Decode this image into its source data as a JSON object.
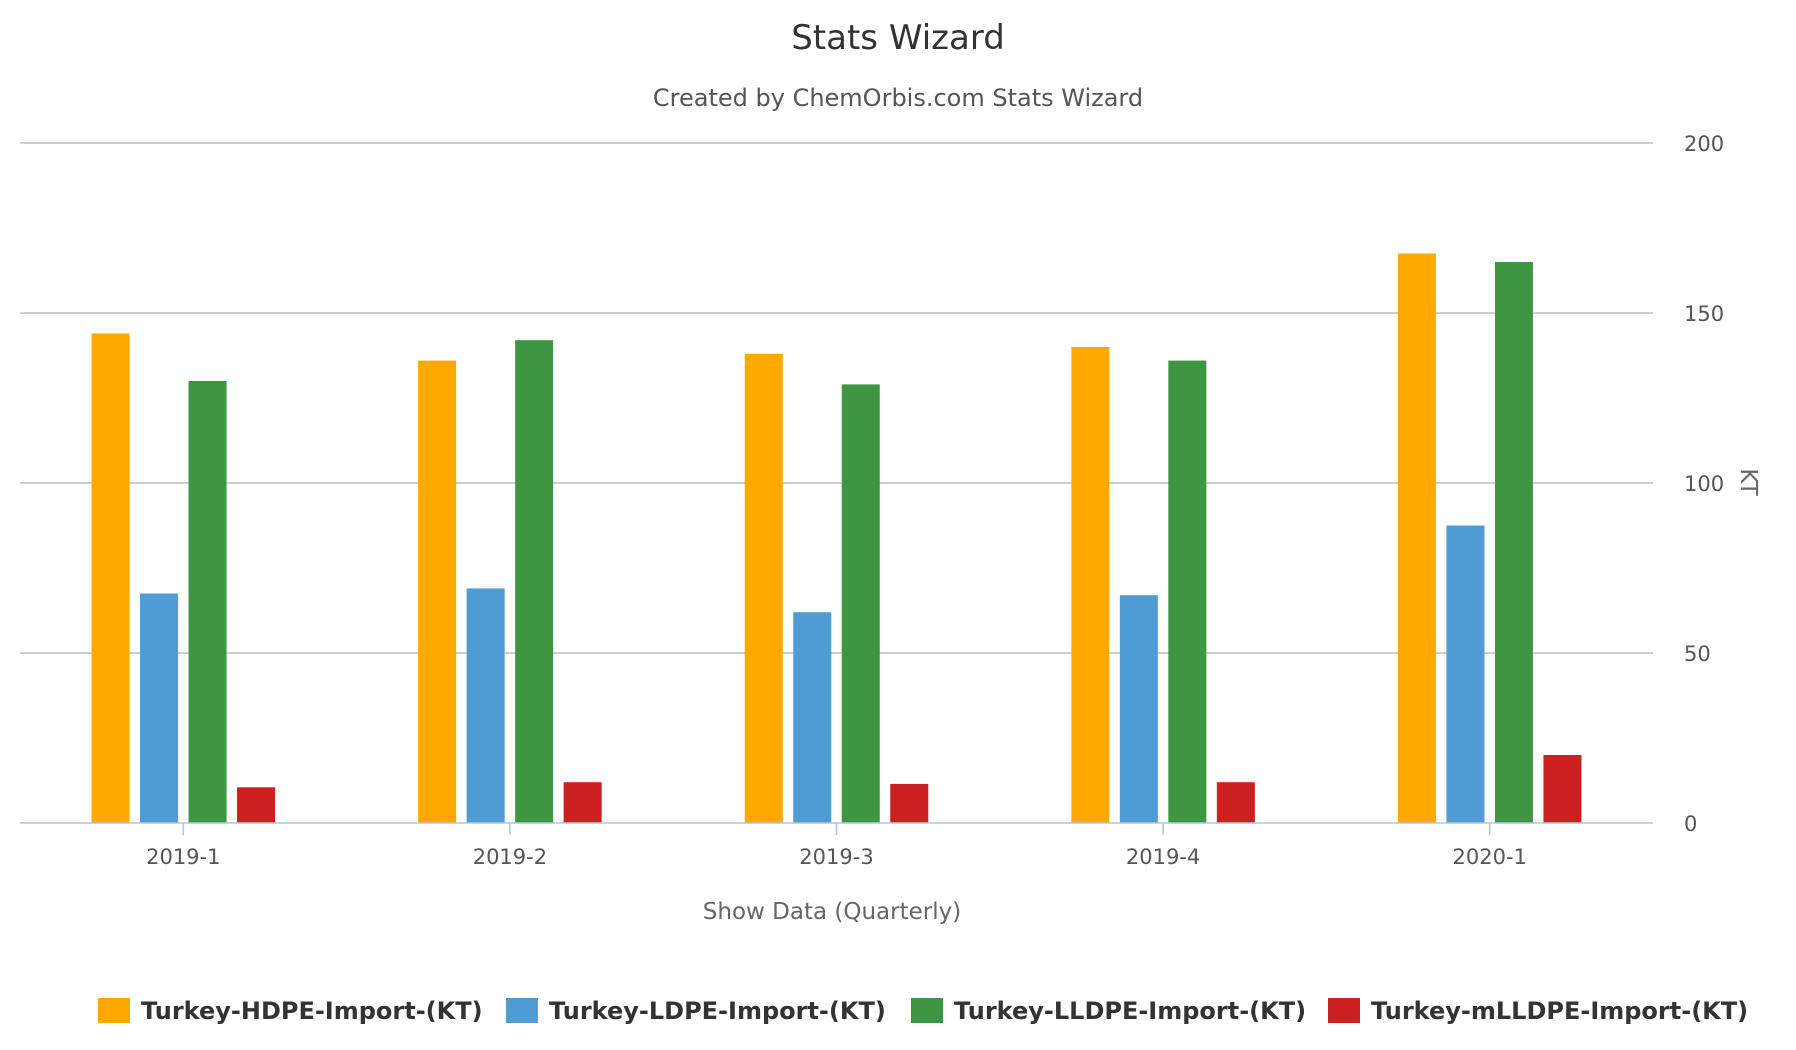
{
  "chart_data": {
    "type": "bar",
    "title": "Stats Wizard",
    "subtitle": "Created by ChemOrbis.com Stats Wizard",
    "xlabel": "Show Data (Quarterly)",
    "ylabel": "KT",
    "categories": [
      "2019-1",
      "2019-2",
      "2019-3",
      "2019-4",
      "2020-1"
    ],
    "ylim": [
      0,
      200
    ],
    "yticks": [
      0,
      50,
      100,
      150,
      200
    ],
    "y_axis_position": "right",
    "grid": true,
    "legend_position": "bottom",
    "series": [
      {
        "name": "Turkey-HDPE-Import-(KT)",
        "color": "#FFA800",
        "values": [
          144,
          136,
          138,
          140,
          167.5
        ]
      },
      {
        "name": "Turkey-LDPE-Import-(KT)",
        "color": "#4F9BD4",
        "values": [
          67.5,
          69,
          62,
          67,
          87.5
        ]
      },
      {
        "name": "Turkey-LLDPE-Import-(KT)",
        "color": "#3E9642",
        "values": [
          130,
          142,
          129,
          136,
          165
        ]
      },
      {
        "name": "Turkey-mLLDPE-Import-(KT)",
        "color": "#CD2020",
        "values": [
          10.5,
          12,
          11.5,
          12,
          20
        ]
      }
    ]
  }
}
